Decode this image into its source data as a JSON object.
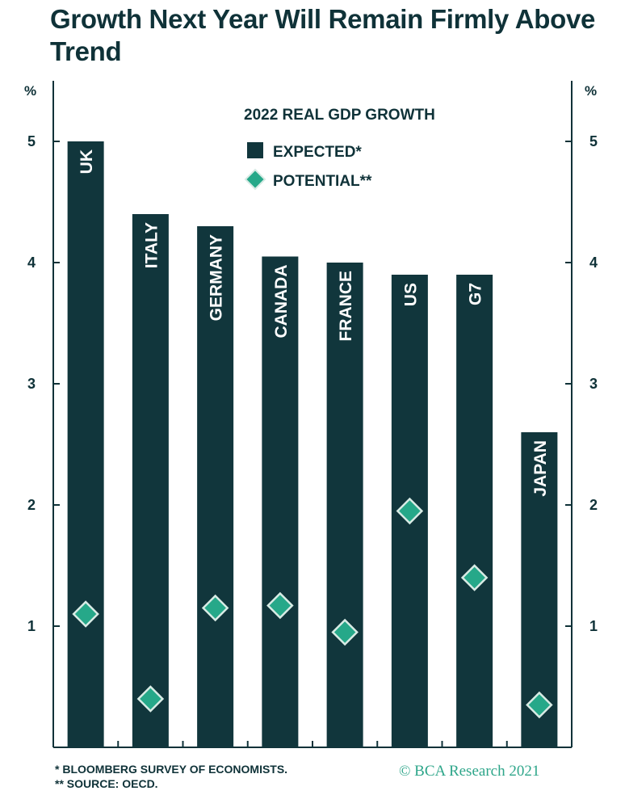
{
  "title": "Growth Next Year Will Remain Firmly Above Trend",
  "footnotes": [
    "*  BLOOMBERG SURVEY OF ECONOMISTS.",
    "** SOURCE: OECD."
  ],
  "credit": "© BCA Research 2021",
  "colors": {
    "bar": "#11363c",
    "marker": "#26a889",
    "text": "#0f3238"
  },
  "chart_data": {
    "type": "bar",
    "title": "2022 REAL GDP GROWTH",
    "ylabel_left": "%",
    "ylabel_right": "%",
    "ylim": [
      0,
      5.5
    ],
    "yticks": [
      1,
      2,
      3,
      4,
      5
    ],
    "categories": [
      "UK",
      "ITALY",
      "GERMANY",
      "CANADA",
      "FRANCE",
      "US",
      "G7",
      "JAPAN"
    ],
    "series": [
      {
        "name": "EXPECTED*",
        "kind": "bar",
        "values": [
          5.0,
          4.4,
          4.3,
          4.05,
          4.0,
          3.9,
          3.9,
          2.6
        ]
      },
      {
        "name": "POTENTIAL**",
        "kind": "marker",
        "values": [
          1.1,
          0.4,
          1.15,
          1.17,
          0.95,
          1.95,
          1.4,
          0.35
        ]
      }
    ],
    "legend_position": "top-center",
    "grid": false
  }
}
